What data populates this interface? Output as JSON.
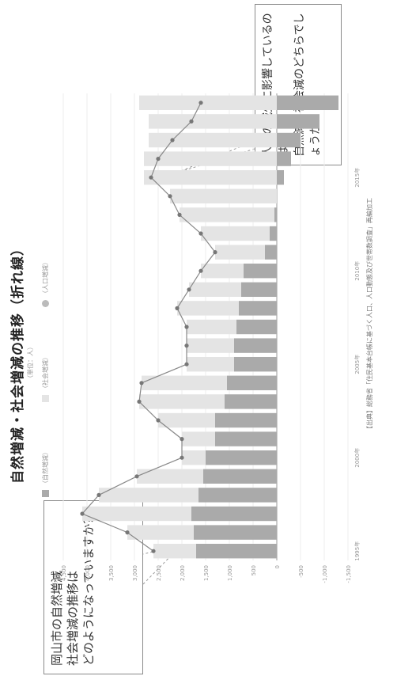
{
  "title": "自然増減・社会増減の推移（折れ線）",
  "subtitle": "（単位：人）",
  "bubble_left": "岡山市の自然増減\n社会増減の推移は\nどのようになっていますか？",
  "bubble_right": "人口の減少に影響しているのは\n自然減、社会減のどちらでしょうか。",
  "source": "【出典】総務省「住民基本台帳に基づく人口、人口動態及び世帯数調査」再編加工",
  "legend": {
    "natural": "（自然増減）",
    "social": "（社会増減）",
    "total": "（人口増減）"
  },
  "colors": {
    "natural": "#aaaaaa",
    "social": "#e4e4e4",
    "line": "#888888"
  },
  "chart_data": {
    "type": "bar",
    "stacked": true,
    "ylabel": "（人）",
    "y_ticks": [
      "4,500",
      "4,000",
      "3,500",
      "3,000",
      "2,500",
      "2,000",
      "1,500",
      "1,000",
      "500",
      "0",
      "-500",
      "-1,000",
      "-1,500"
    ],
    "ylim": [
      -1500,
      4500
    ],
    "x_tick_labels": [
      "1995年",
      "2000年",
      "2005年",
      "2010年",
      "2015年"
    ],
    "categories": [
      "1995",
      "1996",
      "1997",
      "1998",
      "1999",
      "2000",
      "2001",
      "2002",
      "2003",
      "2004",
      "2005",
      "2006",
      "2007",
      "2008",
      "2009",
      "2010",
      "2011",
      "2012",
      "2013",
      "2014",
      "2015",
      "2016",
      "2017",
      "2018",
      "2019"
    ],
    "series": [
      {
        "name": "（自然増減）",
        "values": [
          1700,
          1750,
          1800,
          1650,
          1550,
          1500,
          1300,
          1300,
          1100,
          1050,
          900,
          900,
          850,
          800,
          750,
          700,
          250,
          150,
          50,
          0,
          -150,
          -300,
          -500,
          -900,
          -1300
        ]
      },
      {
        "name": "（社会増減）",
        "values": [
          900,
          1400,
          2300,
          2100,
          1400,
          500,
          700,
          1200,
          1800,
          1800,
          1000,
          1000,
          1050,
          1300,
          1100,
          900,
          1050,
          1450,
          2000,
          2250,
          2800,
          2800,
          2700,
          2700,
          2900
        ]
      },
      {
        "name": "（人口増減）",
        "type": "line",
        "values": [
          2600,
          3150,
          4100,
          3750,
          2950,
          2000,
          2000,
          2500,
          2900,
          2850,
          1900,
          1900,
          1900,
          2100,
          1850,
          1600,
          1300,
          1600,
          2050,
          2250,
          2650,
          2500,
          2200,
          1800,
          1600
        ]
      }
    ],
    "grid": true,
    "legend_position": "top"
  }
}
